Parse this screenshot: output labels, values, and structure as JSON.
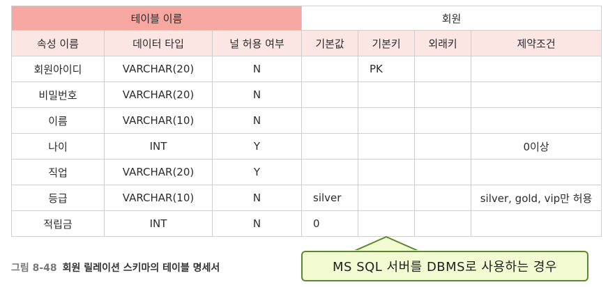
{
  "table": {
    "title_left": "테이블 이름",
    "title_right": "회원",
    "headers": [
      "속성 이름",
      "데이터 타입",
      "널 허용 여부",
      "기본값",
      "기본키",
      "외래키",
      "제약조건"
    ],
    "rows": [
      [
        "회원아이디",
        "VARCHAR(20)",
        "N",
        "",
        "PK",
        "",
        ""
      ],
      [
        "비밀번호",
        "VARCHAR(20)",
        "N",
        "",
        "",
        "",
        ""
      ],
      [
        "이름",
        "VARCHAR(10)",
        "N",
        "",
        "",
        "",
        ""
      ],
      [
        "나이",
        "INT",
        "Y",
        "",
        "",
        "",
        "0이상"
      ],
      [
        "직업",
        "VARCHAR(20)",
        "Y",
        "",
        "",
        "",
        ""
      ],
      [
        "등급",
        "VARCHAR(10)",
        "N",
        "silver",
        "",
        "",
        "silver, gold, vip만 허용"
      ],
      [
        "적립금",
        "INT",
        "N",
        "0",
        "",
        "",
        ""
      ]
    ]
  },
  "caption": {
    "figure_no": "그림 8-48",
    "text": "회원 릴레이션 스키마의 테이블 명세서"
  },
  "callout": {
    "text": "MS SQL 서버를 DBMS로 사용하는 경우"
  },
  "colors": {
    "title_bg": "#f6a7a0",
    "header_bg": "#fce6e3",
    "callout_bg": "#f2fbd2",
    "callout_border": "#5a8a2e"
  }
}
